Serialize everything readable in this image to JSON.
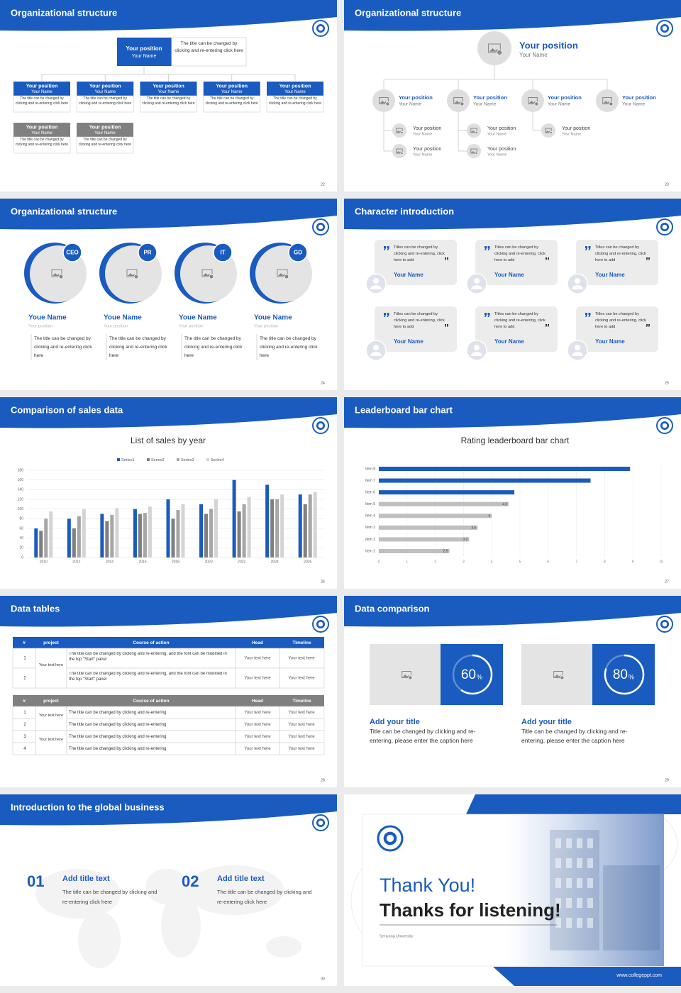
{
  "slides": [
    {
      "title": "Organizational structure",
      "page": "22",
      "head": {
        "position": "Your position",
        "name": "Your Name",
        "note": "The title can be changed by clicking and re-entering click here"
      },
      "boxes": [
        {
          "position": "Your position",
          "name": "Your Name",
          "note": "The title can be changed by clicking and re-entering click here"
        },
        {
          "position": "Your position",
          "name": "Your Name",
          "note": "The title can be changed by clicking and re-entering click here"
        },
        {
          "position": "Your position",
          "name": "Your Name",
          "note": "The title can be changed by clicking and re-entering click here"
        },
        {
          "position": "Your position",
          "name": "Your Name",
          "note": "The title can be changed by clicking and re-entering click here"
        },
        {
          "position": "Your position",
          "name": "Your Name",
          "note": "The title can be changed by clicking and re-entering click here"
        },
        {
          "position": "Your position",
          "name": "Your Name",
          "note": "The title can be changed by clicking and re-entering click here"
        },
        {
          "position": "Your position",
          "name": "Your Name",
          "note": "The title can be changed by clicking and re-entering click here"
        }
      ]
    },
    {
      "title": "Organizational structure",
      "page": "23",
      "head": {
        "position": "Your position",
        "name": "Your Name"
      },
      "members": [
        {
          "position": "Your position",
          "name": "Your Name"
        },
        {
          "position": "Your position",
          "name": "Your Name"
        },
        {
          "position": "Your position",
          "name": "Your Name"
        },
        {
          "position": "Your position",
          "name": "Your Name"
        }
      ],
      "subs": [
        {
          "position": "Your position",
          "name": "Your Name"
        },
        {
          "position": "Your position",
          "name": "Your Name"
        },
        {
          "position": "Your position",
          "name": "Your Name"
        },
        {
          "position": "Your position",
          "name": "Your Name"
        },
        {
          "position": "Your position",
          "name": "Your Name"
        }
      ]
    },
    {
      "title": "Organizational structure",
      "page": "24",
      "members": [
        {
          "tag": "CEO",
          "name": "Youe Name",
          "position": "Your position",
          "note": "The title can be changed by clicking and re-entering click here"
        },
        {
          "tag": "PR",
          "name": "Youe Name",
          "position": "Your position",
          "note": "The title can be changed by clicking and re-entering click here"
        },
        {
          "tag": "IT",
          "name": "Youe Name",
          "position": "Your position",
          "note": "The title can be changed by clicking and re-entering click here"
        },
        {
          "tag": "GD",
          "name": "Youe Name",
          "position": "Your position",
          "note": "The title can be changed by clicking and re-entering click here"
        }
      ]
    },
    {
      "title": "Character introduction",
      "page": "25",
      "cards": [
        {
          "text": "Titles can be changed by clicking and re-entering, click here to add",
          "name": "Your Name"
        },
        {
          "text": "Titles can be changed by clicking and re-entering, click here to add",
          "name": "Your Name"
        },
        {
          "text": "Titles can be changed by clicking and re-entering, click here to add",
          "name": "Your Name"
        },
        {
          "text": "Titles can be changed by clicking and re-entering, click here to add",
          "name": "Your Name"
        },
        {
          "text": "Titles can be changed by clicking and re-entering, click here to add",
          "name": "Your Name"
        },
        {
          "text": "Titles can be changed by clicking and re-entering, click here to add",
          "name": "Your Name"
        }
      ]
    },
    {
      "title": "Comparison of sales data",
      "page": "26",
      "chart_data": {
        "type": "bar",
        "title": "List of sales by year",
        "categories": [
          "2010",
          "2012",
          "2014",
          "2016",
          "2018",
          "2020",
          "2022",
          "2024",
          "2026"
        ],
        "series": [
          {
            "name": "Series1",
            "color": "#1a5bbf",
            "values": [
              60,
              80,
              90,
              100,
              120,
              110,
              160,
              150,
              130
            ]
          },
          {
            "name": "Series2",
            "color": "#7f7f7f",
            "values": [
              55,
              60,
              75,
              90,
              80,
              90,
              95,
              120,
              110
            ]
          },
          {
            "name": "Series3",
            "color": "#a6a6a6",
            "values": [
              80,
              85,
              88,
              92,
              98,
              100,
              110,
              120,
              130
            ]
          },
          {
            "name": "Series4",
            "color": "#d4d4d4",
            "values": [
              95,
              100,
              102,
              105,
              110,
              120,
              125,
              130,
              135
            ]
          }
        ],
        "ylim": [
          0,
          180
        ],
        "yticks": [
          0,
          20,
          40,
          60,
          80,
          100,
          120,
          140,
          160,
          180
        ],
        "grid": true,
        "legend": "top"
      }
    },
    {
      "title": "Leaderboard bar chart",
      "page": "27",
      "chart_data": {
        "type": "bar",
        "orientation": "horizontal",
        "title": "Rating leaderboard bar chart",
        "categories": [
          "Item 1",
          "Item 2",
          "Item 3",
          "Item 4",
          "Item 5",
          "Item 6",
          "Item 7",
          "Item 8"
        ],
        "values": [
          2.5,
          3.2,
          3.5,
          4,
          4.6,
          4.8,
          7.5,
          8.9
        ],
        "value_labels": [
          "2.5",
          "3.2",
          "3.5",
          "4",
          "4.6",
          null,
          null,
          null
        ],
        "colors": [
          "#bfbfbf",
          "#bfbfbf",
          "#bfbfbf",
          "#bfbfbf",
          "#bfbfbf",
          "#1a5bbf",
          "#1a5bbf",
          "#1a5bbf"
        ],
        "xlim": [
          0,
          10
        ],
        "xticks": [
          0,
          1,
          2,
          3,
          4,
          5,
          6,
          7,
          8,
          9,
          10
        ],
        "grid": true
      }
    },
    {
      "title": "Data tables",
      "page": "28",
      "tables": [
        {
          "header": [
            "#",
            "project",
            "Course of action",
            "Head",
            "Timeline"
          ],
          "groups": [
            {
              "project": "Your text here",
              "rows": [
                [
                  "1",
                  "The title can be changed by clicking and re-entering, and the font can be modified in the top \"Start\" panel",
                  "Your text here",
                  "Your text here"
                ],
                [
                  "2",
                  "The title can be changed by clicking and re-entering, and the font can be modified in the top \"Start\" panel",
                  "Your text here",
                  "Your text here"
                ]
              ]
            }
          ]
        },
        {
          "header": [
            "#",
            "project",
            "Course of action",
            "Head",
            "Timeline"
          ],
          "groups": [
            {
              "project": "Your text here",
              "rows": [
                [
                  "1",
                  "The title can be changed by clicking and re-entering",
                  "Your text here",
                  "Your text here"
                ],
                [
                  "2",
                  "The title can be changed by clicking and re-entering",
                  "Your text here",
                  "Your text here"
                ]
              ]
            },
            {
              "project": "Your text here",
              "rows": [
                [
                  "3",
                  "The title can be changed by clicking and re-entering",
                  "Your text here",
                  "Your text here"
                ],
                [
                  "4",
                  "The title can be changed by clicking and re-entering",
                  "Your text here",
                  "Your text here"
                ]
              ]
            }
          ]
        }
      ]
    },
    {
      "title": "Data comparison",
      "page": "29",
      "items": [
        {
          "value": 60,
          "unit": "%",
          "title": "Add your title",
          "text": "Title can be changed by clicking and re-entering, please enter the caption here"
        },
        {
          "value": 80,
          "unit": "%",
          "title": "Add your title",
          "text": "Title can be changed by clicking and re-entering, please enter the caption here"
        }
      ]
    },
    {
      "title": "Introduction to the global business",
      "page": "30",
      "items": [
        {
          "number": "01",
          "title": "Add title text",
          "text": "The title can be changed by clicking and re-entering click here"
        },
        {
          "number": "02",
          "title": "Add title text",
          "text": "The title can be changed by clicking and re-entering click here"
        }
      ]
    },
    {
      "line1": "Thank You!",
      "line2": "Thanks for listening!",
      "school": "Senyang University",
      "url": "www.collegeppt.com"
    }
  ]
}
